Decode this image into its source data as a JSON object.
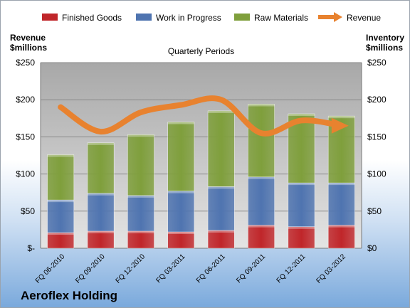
{
  "chart_data": {
    "type": "bar",
    "subtitle": "Quarterly Periods",
    "company": "Aeroflex Holding",
    "left_axis_title": [
      "Revenue",
      "$millions"
    ],
    "right_axis_title": [
      "Inventory",
      "$millions"
    ],
    "categories": [
      "FQ 06-2010",
      "FQ 09-2010",
      "FQ 12-2010",
      "FQ 03-2011",
      "FQ 06-2011",
      "FQ 09-2011",
      "FQ 12-2011",
      "FQ 03-2012"
    ],
    "series": [
      {
        "name": "Finished Goods",
        "color": "#c0262a",
        "values": [
          21,
          23,
          23,
          22,
          24,
          31,
          29,
          31
        ]
      },
      {
        "name": "Work in Progress",
        "color": "#4f74b0",
        "values": [
          44,
          51,
          48,
          55,
          59,
          65,
          59,
          57
        ]
      },
      {
        "name": "Raw Materials",
        "color": "#7f9f3c",
        "values": [
          61,
          68,
          82,
          93,
          102,
          98,
          93,
          90
        ]
      }
    ],
    "line_series": {
      "name": "Revenue",
      "color": "#e8822f",
      "values": [
        190,
        157,
        183,
        193,
        200,
        155,
        172,
        165
      ]
    },
    "y_ticks_left": [
      "$-",
      "$50",
      "$100",
      "$150",
      "$200",
      "$250"
    ],
    "y_ticks_right": [
      "$0",
      "$50",
      "$100",
      "$150",
      "$200",
      "$250"
    ],
    "ylim": [
      0,
      250
    ],
    "legend_position": "top",
    "grid": true
  }
}
